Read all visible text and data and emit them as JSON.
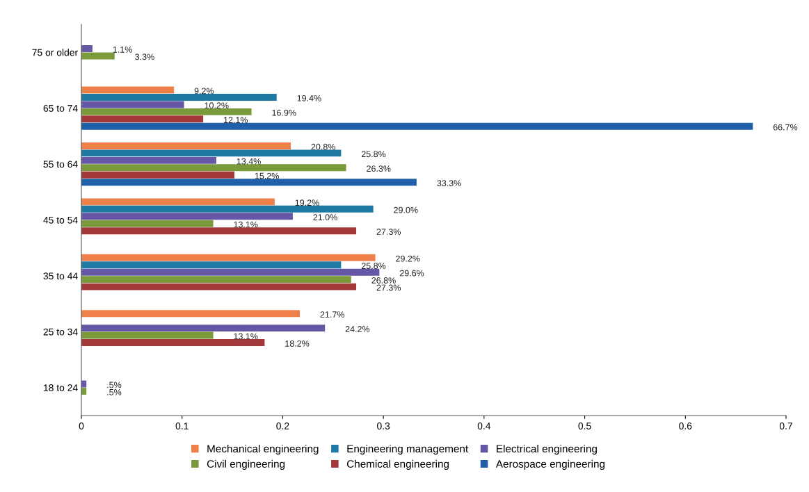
{
  "chart_data": {
    "type": "bar",
    "orientation": "horizontal",
    "categories": [
      "75 or older",
      "65 to 74",
      "55 to 64",
      "45 to 54",
      "35 to 44",
      "25 to 34",
      "18 to 24"
    ],
    "series": [
      {
        "name": "Mechanical engineering",
        "color": "#f0804a",
        "values": [
          null,
          0.092,
          0.208,
          0.192,
          0.292,
          0.217,
          null
        ],
        "value_labels": [
          null,
          "9.2%",
          "20.8%",
          "19.2%",
          "29.2%",
          "21.7%",
          null
        ]
      },
      {
        "name": "Engineering management",
        "color": "#1f7aa3",
        "values": [
          null,
          0.194,
          0.258,
          0.29,
          0.258,
          null,
          null
        ],
        "value_labels": [
          null,
          "19.4%",
          "25.8%",
          "29.0%",
          "25.8%",
          null,
          null
        ]
      },
      {
        "name": "Electrical engineering",
        "color": "#6657a6",
        "values": [
          0.011,
          0.102,
          0.134,
          0.21,
          0.296,
          0.242,
          0.005
        ],
        "value_labels": [
          "1.1%",
          "10.2%",
          "13.4%",
          "21.0%",
          "29.6%",
          "24.2%",
          ".5%"
        ]
      },
      {
        "name": "Civil engineering",
        "color": "#7a9a3c",
        "values": [
          0.033,
          0.169,
          0.263,
          0.131,
          0.268,
          0.131,
          0.005
        ],
        "value_labels": [
          "3.3%",
          "16.9%",
          "26.3%",
          "13.1%",
          "26.8%",
          "13.1%",
          ".5%"
        ]
      },
      {
        "name": "Chemical engineering",
        "color": "#a3383a",
        "values": [
          null,
          0.121,
          0.152,
          0.273,
          0.273,
          0.182,
          null
        ],
        "value_labels": [
          null,
          "12.1%",
          "15.2%",
          "27.3%",
          "27.3%",
          "18.2%",
          null
        ]
      },
      {
        "name": "Aerospace engineering",
        "color": "#1f60a8",
        "values": [
          null,
          0.667,
          0.333,
          null,
          null,
          null,
          null
        ],
        "value_labels": [
          null,
          "66.7%",
          "33.3%",
          null,
          null,
          null,
          null
        ]
      }
    ],
    "xlim": [
      0,
      0.7
    ],
    "xticks": [
      0,
      0.1,
      0.2,
      0.3,
      0.4,
      0.5,
      0.6,
      0.7
    ],
    "grid": false,
    "legend": "bottom"
  }
}
